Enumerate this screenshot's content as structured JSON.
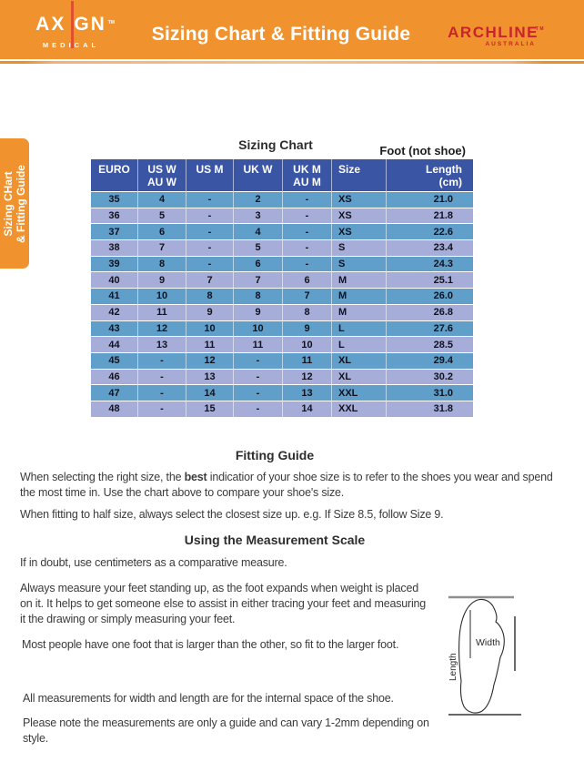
{
  "header": {
    "title": "Sizing Chart & Fitting Guide",
    "axign": {
      "part1": "AX",
      "part2": "GN",
      "tm": "TM",
      "sub": "MEDICAL"
    },
    "archline": {
      "name": "ARCHLINE",
      "tm": "TM",
      "sub": "AUSTRALIA"
    }
  },
  "sidebar_tab": {
    "line1": "Sizing CHart",
    "line2": "& Fitting Guide"
  },
  "sizing_chart": {
    "title": "Sizing Chart",
    "note": "Foot (not shoe)",
    "columns": [
      {
        "line1": "EURO",
        "line2": ""
      },
      {
        "line1": "US W",
        "line2": "AU W"
      },
      {
        "line1": "US M",
        "line2": ""
      },
      {
        "line1": "UK W",
        "line2": ""
      },
      {
        "line1": "UK M",
        "line2": "AU M"
      },
      {
        "line1": "Size",
        "line2": ""
      },
      {
        "line1": "Length",
        "line2": "(cm)"
      }
    ],
    "rows": [
      [
        "35",
        "4",
        "-",
        "2",
        "-",
        "XS",
        "21.0"
      ],
      [
        "36",
        "5",
        "-",
        "3",
        "-",
        "XS",
        "21.8"
      ],
      [
        "37",
        "6",
        "-",
        "4",
        "-",
        "XS",
        "22.6"
      ],
      [
        "38",
        "7",
        "-",
        "5",
        "-",
        "S",
        "23.4"
      ],
      [
        "39",
        "8",
        "-",
        "6",
        "-",
        "S",
        "24.3"
      ],
      [
        "40",
        "9",
        "7",
        "7",
        "6",
        "M",
        "25.1"
      ],
      [
        "41",
        "10",
        "8",
        "8",
        "7",
        "M",
        "26.0"
      ],
      [
        "42",
        "11",
        "9",
        "9",
        "8",
        "M",
        "26.8"
      ],
      [
        "43",
        "12",
        "10",
        "10",
        "9",
        "L",
        "27.6"
      ],
      [
        "44",
        "13",
        "11",
        "11",
        "10",
        "L",
        "28.5"
      ],
      [
        "45",
        "-",
        "12",
        "-",
        "11",
        "XL",
        "29.4"
      ],
      [
        "46",
        "-",
        "13",
        "-",
        "12",
        "XL",
        "30.2"
      ],
      [
        "47",
        "-",
        "14",
        "-",
        "13",
        "XXL",
        "31.0"
      ],
      [
        "48",
        "-",
        "15",
        "-",
        "14",
        "XXL",
        "31.8"
      ]
    ]
  },
  "fitting_guide": {
    "title": "Fitting Guide",
    "p1_before": "When selecting the right size, the ",
    "p1_bold": "best",
    "p1_after": " indicatior of your shoe size is to refer to the shoes you wear and spend the most time in. Use the chart above to compare your shoe's size.",
    "p2": "When fitting to half size, always select the closest size up. e.g. If Size 8.5, follow Size 9."
  },
  "measurement": {
    "title": "Using the Measurement Scale",
    "p1": "If in doubt, use centimeters as a comparative measure.",
    "p2": "Always measure your feet standing up, as the foot expands when weight is placed on it. It helps to get someone else to assist in either tracing your feet and measuring it the drawing or simply measuring your feet.",
    "p3": "Most people have one foot that is larger than the other, so fit to the larger foot.",
    "p4": "All measurements for width and length are for the internal space of the shoe.",
    "p5": "Please note the measurements are only a guide and can vary 1-2mm depending on style."
  },
  "diagram": {
    "width_label": "Width",
    "length_label": "Length"
  },
  "colors": {
    "banner_orange": "#F0922E",
    "divider_orange": "#F3B179",
    "table_header_navy": "#3A55A4",
    "row_steel_blue": "#5F9FC9",
    "row_periwinkle": "#A5ADD8",
    "brand_red": "#C9232B",
    "axign_bar_red": "#E0502D"
  }
}
